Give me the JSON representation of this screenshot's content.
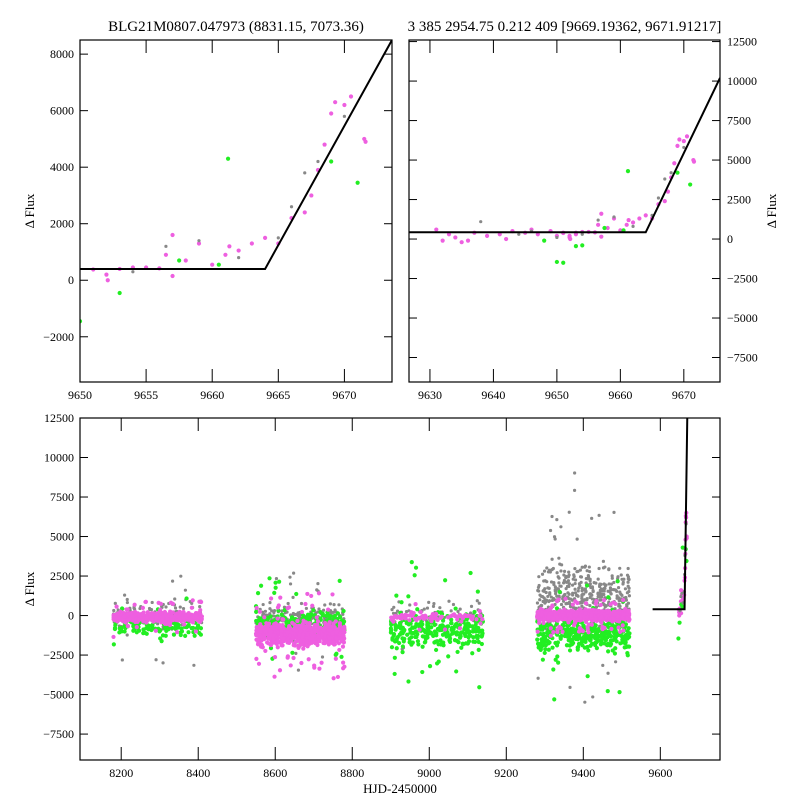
{
  "chart_data": [
    {
      "type": "scatter",
      "title": "BLG21M0807.047973 (8831.15, 7073.36)",
      "xlabel": "",
      "ylabel": "Δ Flux",
      "xlim": [
        9650,
        9673.6
      ],
      "ylim": [
        -3600,
        8500
      ],
      "xticks": [
        9650,
        9655,
        9660,
        9665,
        9670
      ],
      "yticks": [
        -2000,
        0,
        2000,
        4000,
        6000,
        8000
      ],
      "yaxis": "left",
      "series": [
        {
          "name": "magenta",
          "color": "#ee5fe0",
          "points": [
            [
              9651,
              380
            ],
            [
              9652,
              200
            ],
            [
              9652.1,
              0
            ],
            [
              9653,
              400
            ],
            [
              9654,
              450
            ],
            [
              9655,
              450
            ],
            [
              9656,
              420
            ],
            [
              9656.5,
              900
            ],
            [
              9657,
              1600
            ],
            [
              9657,
              150
            ],
            [
              9658,
              700
            ],
            [
              9659,
              1300
            ],
            [
              9660,
              550
            ],
            [
              9661,
              900
            ],
            [
              9661.3,
              1200
            ],
            [
              9662,
              1050
            ],
            [
              9663,
              1300
            ],
            [
              9664,
              1500
            ],
            [
              9665,
              1300
            ],
            [
              9666,
              2200
            ],
            [
              9667,
              2400
            ],
            [
              9667.5,
              3000
            ],
            [
              9668,
              3900
            ],
            [
              9668.5,
              4800
            ],
            [
              9669,
              5900
            ],
            [
              9669.3,
              6300
            ],
            [
              9670,
              6200
            ],
            [
              9670.5,
              6500
            ],
            [
              9671.5,
              5000
            ],
            [
              9671.6,
              4900
            ]
          ]
        },
        {
          "name": "green",
          "color": "#22ee22",
          "points": [
            [
              9650,
              -1450
            ],
            [
              9653,
              -450
            ],
            [
              9657.5,
              700
            ],
            [
              9660.5,
              550
            ],
            [
              9661.2,
              4300
            ],
            [
              9669,
              4200
            ],
            [
              9671,
              3450
            ]
          ]
        },
        {
          "name": "gray",
          "color": "#888888",
          "points": [
            [
              9654,
              300
            ],
            [
              9656.5,
              1200
            ],
            [
              9659,
              1400
            ],
            [
              9662,
              800
            ],
            [
              9665,
              1500
            ],
            [
              9666,
              2600
            ],
            [
              9667,
              3800
            ],
            [
              9668,
              4200
            ],
            [
              9670,
              5800
            ]
          ]
        }
      ],
      "model": [
        [
          9650,
          400
        ],
        [
          9664,
          400
        ],
        [
          9673.6,
          8500
        ]
      ]
    },
    {
      "type": "scatter",
      "title": "3 385 2954.75 0.212 409 [9669.19362, 9671.91217]",
      "xlabel": "",
      "ylabel": "Δ Flux",
      "xlim": [
        9626.7,
        9675.7
      ],
      "ylim": [
        -9050,
        12600
      ],
      "xticks": [
        9630,
        9640,
        9650,
        9660,
        9670
      ],
      "yticks": [
        -7500,
        -5000,
        -2500,
        0,
        2500,
        5000,
        7500,
        10000,
        12500
      ],
      "yaxis": "right",
      "extra": [
        {
          "name": "magenta",
          "color": "#ee5fe0",
          "points": [
            [
              9631,
              600
            ],
            [
              9632,
              -100
            ],
            [
              9633,
              300
            ],
            [
              9634,
              100
            ],
            [
              9635,
              -200
            ],
            [
              9636,
              -100
            ],
            [
              9637,
              400
            ],
            [
              9639,
              200
            ],
            [
              9641,
              300
            ],
            [
              9642,
              0
            ],
            [
              9643,
              500
            ],
            [
              9645,
              400
            ],
            [
              9646,
              600
            ],
            [
              9647,
              300
            ],
            [
              9649,
              500
            ],
            [
              9650,
              200
            ],
            [
              9651,
              400
            ],
            [
              9652,
              100
            ],
            [
              9653,
              300
            ]
          ]
        },
        {
          "name": "green",
          "color": "#22ee22",
          "points": [
            [
              9648,
              -100
            ],
            [
              9651,
              -1500
            ],
            [
              9654,
              -400
            ]
          ]
        },
        {
          "name": "gray",
          "color": "#888888",
          "points": [
            [
              9638,
              1100
            ],
            [
              9644,
              300
            ],
            [
              9646,
              500
            ],
            [
              9650,
              100
            ]
          ]
        }
      ],
      "model": [
        [
          9626.7,
          430
        ],
        [
          9664,
          430
        ],
        [
          9675.7,
          10200
        ]
      ]
    },
    {
      "type": "scatter",
      "title": "",
      "xlabel": "HJD-2450000",
      "ylabel": "Δ Flux",
      "xlim": [
        8093,
        9755
      ],
      "ylim": [
        -9140,
        12500
      ],
      "xticks": [
        8200,
        8400,
        8600,
        8800,
        9000,
        9200,
        9400,
        9600
      ],
      "yticks": [
        -7500,
        -5000,
        -2500,
        0,
        2500,
        5000,
        7500,
        10000,
        12500
      ],
      "yaxis": "left",
      "seasons": [
        {
          "x": [
            8180,
            8410
          ],
          "gray": [
            0,
            900,
            150
          ],
          "magenta": [
            -100,
            350,
            500
          ],
          "green": [
            -700,
            800,
            120
          ]
        },
        {
          "x": [
            8550,
            8780
          ],
          "gray": [
            -400,
            1200,
            300
          ],
          "magenta": [
            -1200,
            800,
            700
          ],
          "green": [
            -500,
            900,
            200
          ]
        },
        {
          "x": [
            8900,
            9140
          ],
          "gray": [
            200,
            900,
            60
          ],
          "magenta": [
            -100,
            300,
            80
          ],
          "green": [
            -900,
            1400,
            300
          ]
        },
        {
          "x": [
            9280,
            9520
          ],
          "gray": [
            1200,
            2200,
            450
          ],
          "magenta": [
            0,
            350,
            900
          ],
          "green": [
            -1200,
            1200,
            350
          ]
        }
      ],
      "model": [
        [
          9580,
          400
        ],
        [
          9663,
          400
        ],
        [
          9670,
          12500
        ]
      ]
    }
  ]
}
